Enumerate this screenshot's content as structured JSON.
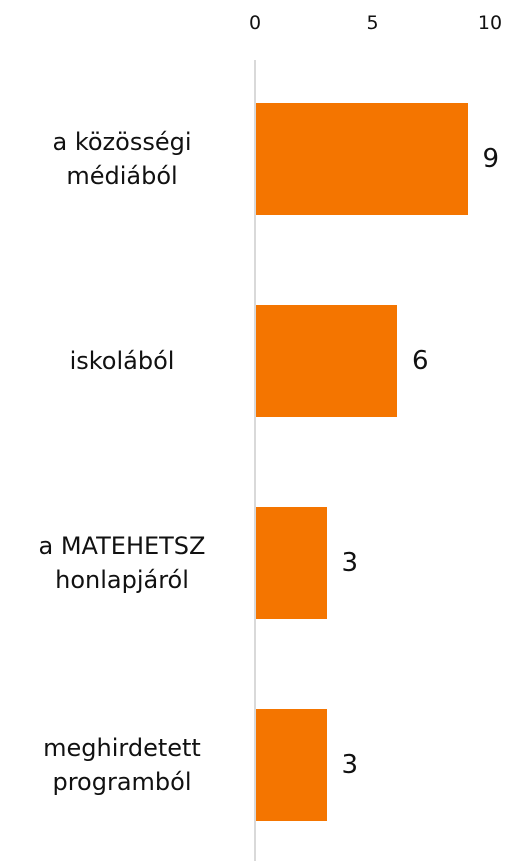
{
  "chart_data": {
    "type": "barh",
    "categories": [
      "a közösségi médiából",
      "iskolából",
      "a MATEHETSZ honlapjáról",
      "meghirdetett programból"
    ],
    "values": [
      9,
      6,
      3,
      3
    ],
    "color": "#f47500",
    "xlim": [
      0,
      10
    ],
    "xticks": [
      0,
      5,
      10
    ],
    "grid": false
  }
}
